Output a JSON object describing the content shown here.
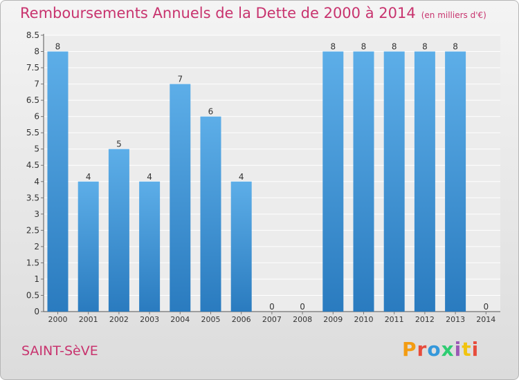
{
  "header": {
    "title": "Remboursements Annuels de la Dette de 2000 à 2014",
    "subtitle": "(en milliers d'€)"
  },
  "footer": {
    "commune": "SAINT-SèVE",
    "logo_text": "Proxiti"
  },
  "colors": {
    "accent": "#c8336e",
    "bar_top": "#5daee8",
    "bar_bottom": "#2a7bbf",
    "logo": [
      "#f39c12",
      "#e74c3c",
      "#3498db",
      "#2ecc71",
      "#9b59b6",
      "#f1c40f",
      "#e74c3c"
    ]
  },
  "chart_data": {
    "type": "bar",
    "title": "Remboursements Annuels de la Dette de 2000 à 2014",
    "xlabel": "",
    "ylabel": "",
    "categories": [
      "2000",
      "2001",
      "2002",
      "2003",
      "2004",
      "2005",
      "2006",
      "2007",
      "2008",
      "2009",
      "2010",
      "2011",
      "2012",
      "2013",
      "2014"
    ],
    "values": [
      8,
      4,
      5,
      4,
      7,
      6,
      4,
      0,
      null,
      8,
      8,
      8,
      8,
      8,
      0
    ],
    "data_labels": [
      "8",
      "4",
      "5",
      "4",
      "7",
      "6",
      "4",
      "0",
      "0",
      "8",
      "8",
      "8",
      "8",
      "8",
      "0"
    ],
    "ylim": [
      0,
      8.5
    ],
    "yticks": [
      "0",
      "0.5",
      "1",
      "1.5",
      "2",
      "2.5",
      "3",
      "3.5",
      "4",
      "4.5",
      "5",
      "5.5",
      "6",
      "6.5",
      "7",
      "7.5",
      "8",
      "8.5"
    ],
    "grid": true,
    "legend": "none"
  }
}
